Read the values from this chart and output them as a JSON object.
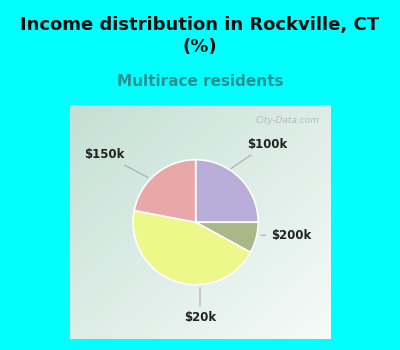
{
  "title": "Income distribution in Rockville, CT\n(%)",
  "subtitle": "Multirace residents",
  "slices": [
    {
      "label": "$100k",
      "value": 25,
      "color": "#b8aed8"
    },
    {
      "label": "$200k",
      "value": 8,
      "color": "#a8b888"
    },
    {
      "label": "$20k",
      "value": 45,
      "color": "#eef88a"
    },
    {
      "label": "$150k",
      "value": 22,
      "color": "#e8a8a8"
    }
  ],
  "title_fontsize": 13,
  "subtitle_fontsize": 11,
  "subtitle_color": "#2a9090",
  "label_fontsize": 8.5,
  "bg_color": "#00ffff",
  "panel_bg_colors": [
    "#c5dfd5",
    "#daeee5",
    "#f0f8f4",
    "#ffffff"
  ],
  "watermark": "City-Data.com"
}
